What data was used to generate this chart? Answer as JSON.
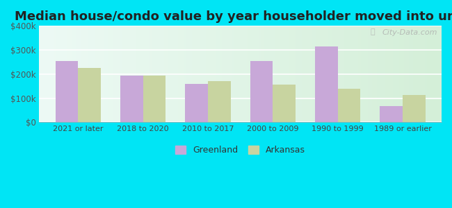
{
  "title": "Median house/condo value by year householder moved into unit",
  "categories": [
    "2021 or later",
    "2018 to 2020",
    "2010 to 2017",
    "2000 to 2009",
    "1990 to 1999",
    "1989 or earlier"
  ],
  "greenland_values": [
    253000,
    195000,
    160000,
    253000,
    315000,
    68000
  ],
  "arkansas_values": [
    225000,
    193000,
    170000,
    155000,
    138000,
    113000
  ],
  "greenland_color": "#c8a8d8",
  "arkansas_color": "#c8d4a0",
  "background_outer": "#00e5f5",
  "bg_top": "#edfaf5",
  "bg_bottom": "#d4efd8",
  "ylim": [
    0,
    400000
  ],
  "yticks": [
    0,
    100000,
    200000,
    300000,
    400000
  ],
  "ytick_labels": [
    "$0",
    "$100k",
    "$200k",
    "$300k",
    "$400k"
  ],
  "bar_width": 0.35,
  "legend_greenland": "Greenland",
  "legend_arkansas": "Arkansas",
  "title_fontsize": 13,
  "watermark": "City-Data.com"
}
